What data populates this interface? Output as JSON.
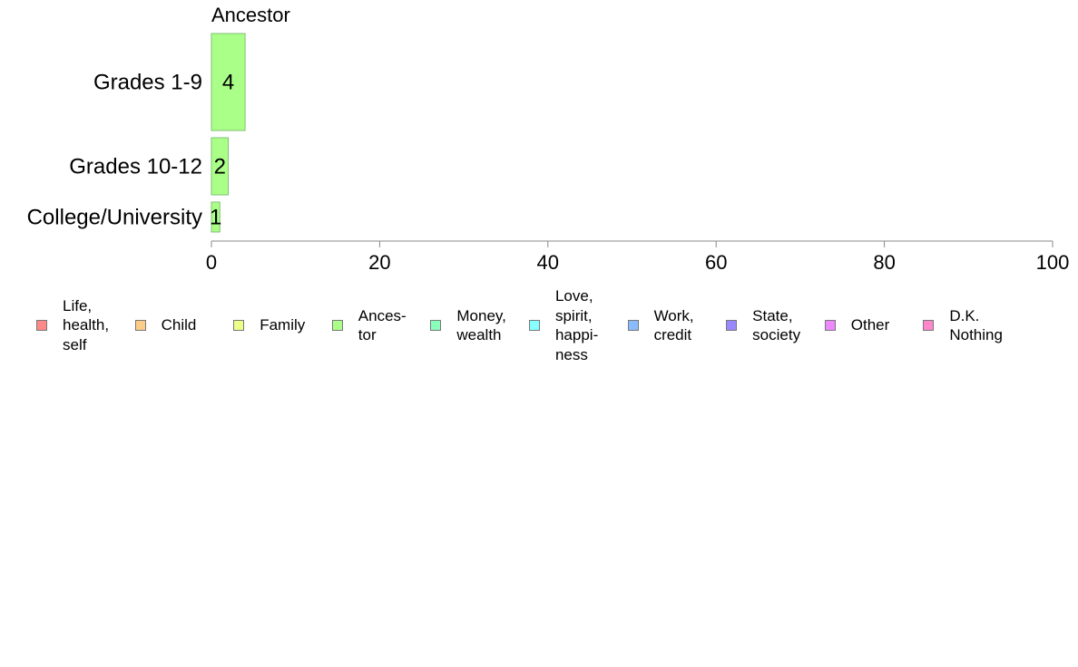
{
  "chart_data": {
    "type": "bar",
    "orientation": "horizontal",
    "title": "Ancestor",
    "categories": [
      "Grades 1-9",
      "Grades 10-12",
      "College/University"
    ],
    "series": [
      {
        "name": "Ances-\ntor",
        "values": [
          4,
          2,
          1
        ],
        "color": "#aaff88"
      }
    ],
    "data_labels": [
      "4",
      "2",
      "1"
    ],
    "xlim": [
      0,
      100
    ],
    "xticks": [
      0,
      20,
      40,
      60,
      80,
      100
    ],
    "xlabel": "",
    "ylabel": "",
    "grid": false,
    "legend_position": "bottom"
  },
  "legend": [
    {
      "label": "Life,\nhealth,\nself",
      "color": "#ff8888"
    },
    {
      "label": "Child",
      "color": "#ffcc88"
    },
    {
      "label": "Family",
      "color": "#eeff88"
    },
    {
      "label": "Ances-\ntor",
      "color": "#aaff88"
    },
    {
      "label": "Money,\nwealth",
      "color": "#88ffbb"
    },
    {
      "label": "Love,\nspirit,\nhappi-\nness",
      "color": "#88ffff"
    },
    {
      "label": "Work,\ncredit",
      "color": "#88bbff"
    },
    {
      "label": "State,\nsociety",
      "color": "#9988ff"
    },
    {
      "label": "Other",
      "color": "#ee88ff"
    },
    {
      "label": "D.K.\nNothing",
      "color": "#ff88cc"
    }
  ]
}
